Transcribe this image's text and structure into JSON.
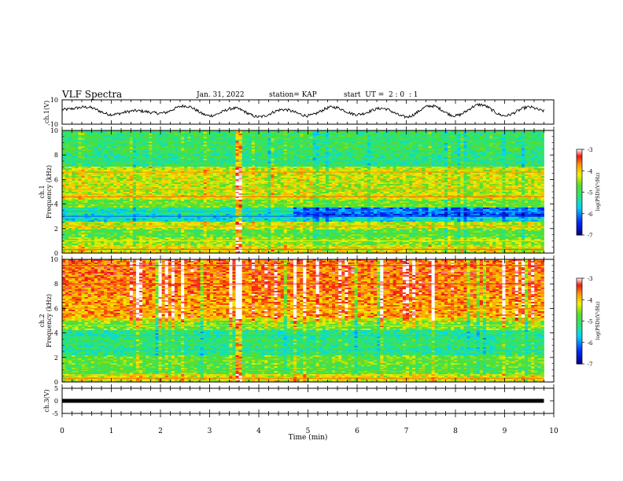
{
  "header": {
    "title": "VLF Spectra",
    "date": "Jan. 31, 2022",
    "station": "station= KAP",
    "start": "start  UT =  2 : 0  : 1"
  },
  "chart_data": [
    {
      "type": "line",
      "panel": "ch1-waveform",
      "ylabel": "ch.1(V)",
      "ylim": [
        -10,
        10
      ],
      "yticks": [
        "10",
        "-10"
      ],
      "xlim": [
        0,
        10
      ],
      "approx_shape": "oscillating signal with roughly 10 cycles over 9.8 min, amplitude about ±5 V",
      "x": [
        0.0,
        0.5,
        1.0,
        1.5,
        2.0,
        2.5,
        3.0,
        3.5,
        4.0,
        4.5,
        5.0,
        5.5,
        6.0,
        6.5,
        7.0,
        7.5,
        8.0,
        8.5,
        9.0,
        9.5,
        9.8
      ],
      "y": [
        2,
        4,
        -2,
        1,
        -1,
        5,
        -3,
        3,
        -4,
        2,
        -3,
        4,
        -2,
        3,
        -4,
        5,
        -3,
        6,
        -3,
        4,
        1
      ]
    },
    {
      "type": "heatmap",
      "panel": "ch1-spectrogram",
      "ylabel": "ch.1\nFrequency (kHz)",
      "ylim": [
        0,
        10
      ],
      "yticks": [
        "0",
        "2",
        "4",
        "6",
        "8",
        "10"
      ],
      "xlim": [
        0,
        10
      ],
      "data_extent_min": 9.8,
      "color_scale": "log(PSD)(V²/Hz)",
      "color_range": [
        -7,
        -3
      ],
      "colorbar_ticks": [
        "-3",
        "-4",
        "-5",
        "-6",
        "-7"
      ],
      "bands_khz": [
        {
          "f": 0.3,
          "level": -3.5
        },
        {
          "f": 1.0,
          "level": -4.2
        },
        {
          "f": 1.6,
          "level": -4.8
        },
        {
          "f": 2.2,
          "level": -3.8
        },
        {
          "f": 3.0,
          "level": -6.2
        },
        {
          "f": 3.4,
          "level": -5.8
        },
        {
          "f": 4.0,
          "level": -4.6
        },
        {
          "f": 4.6,
          "level": -3.6
        },
        {
          "f": 5.2,
          "level": -3.8
        },
        {
          "f": 6.6,
          "level": -3.7
        },
        {
          "f": 7.5,
          "level": -5.4
        },
        {
          "f": 9.2,
          "level": -5.2
        }
      ]
    },
    {
      "type": "heatmap",
      "panel": "ch2-spectrogram",
      "ylabel": "ch.2\nFrequency (kHz)",
      "ylim": [
        0,
        10
      ],
      "yticks": [
        "0",
        "2",
        "4",
        "6",
        "8",
        "10"
      ],
      "xlim": [
        0,
        10
      ],
      "data_extent_min": 9.8,
      "color_scale": "log(PSD)(V²/Hz)",
      "color_range": [
        -7,
        -3
      ],
      "colorbar_ticks": [
        "-3",
        "-4",
        "-5",
        "-6",
        "-7"
      ],
      "bands_khz": [
        {
          "f": 0.3,
          "level": -3.6
        },
        {
          "f": 1.0,
          "level": -4.8
        },
        {
          "f": 1.8,
          "level": -4.6
        },
        {
          "f": 2.6,
          "level": -5.5
        },
        {
          "f": 3.2,
          "level": -5.3
        },
        {
          "f": 3.8,
          "level": -5.6
        },
        {
          "f": 4.6,
          "level": -4.4
        },
        {
          "f": 6.0,
          "level": -3.7
        },
        {
          "f": 8.0,
          "level": -3.4
        },
        {
          "f": 9.5,
          "level": -3.3
        }
      ]
    },
    {
      "type": "line",
      "panel": "ch3-waveform",
      "ylabel": "ch.3(V)",
      "ylim": [
        -5,
        5
      ],
      "yticks": [
        "5",
        "0",
        "-5"
      ],
      "xlim": [
        0,
        10
      ],
      "x": [
        0,
        9.8
      ],
      "y": [
        0,
        0
      ],
      "xlabel": "Time (min)",
      "xticks": [
        "0",
        "1",
        "2",
        "3",
        "4",
        "5",
        "6",
        "7",
        "8",
        "9",
        "10"
      ]
    }
  ]
}
